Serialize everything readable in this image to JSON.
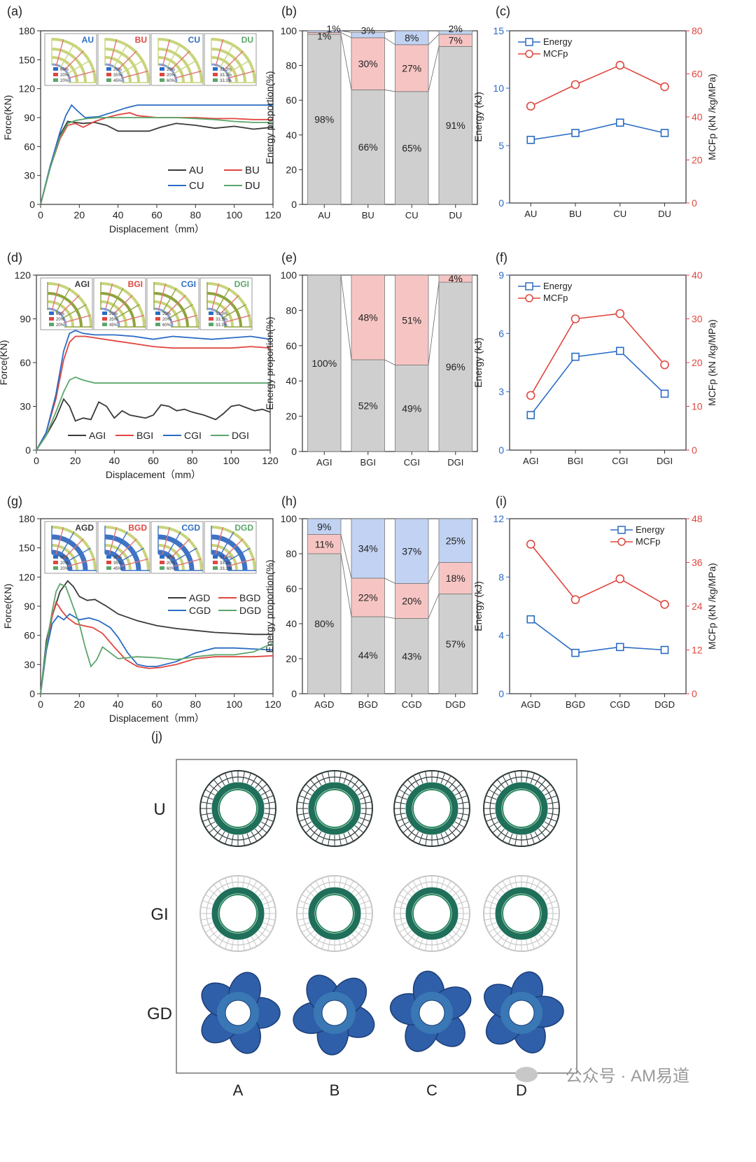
{
  "colors": {
    "gray": "#3a3a3a",
    "red": "#e0463f",
    "blue": "#2b6cc4",
    "green": "#5aa66a",
    "bar_gray": "#cfcfcf",
    "bar_pink": "#f6c5c3",
    "bar_blue": "#c1d2f2",
    "energy": "#2b6cc4",
    "mcfp": "#e0463f",
    "inset_u": "#c9d47c",
    "inset_gi": "#8fa43d",
    "inset_gd": "#3f73c4"
  },
  "chart_data": [
    {
      "panel": "(a)",
      "type": "line",
      "xlabel": "Displacement（mm）",
      "ylabel": "Force(KN)",
      "xlim": [
        0,
        120
      ],
      "ylim": [
        0,
        180
      ],
      "xticks": [
        0,
        20,
        40,
        60,
        80,
        100,
        120
      ],
      "yticks": [
        0,
        30,
        60,
        90,
        120,
        150,
        180
      ],
      "legend": "bottom-right",
      "series": [
        {
          "name": "AU",
          "color": "gray",
          "x": [
            0,
            5,
            10,
            14,
            18,
            22,
            28,
            34,
            40,
            48,
            56,
            62,
            70,
            80,
            90,
            100,
            110,
            120
          ],
          "y": [
            0,
            40,
            72,
            86,
            85,
            84,
            85,
            82,
            76,
            76,
            76,
            80,
            84,
            82,
            79,
            81,
            78,
            80
          ]
        },
        {
          "name": "BU",
          "color": "red",
          "x": [
            0,
            5,
            10,
            14,
            18,
            22,
            28,
            34,
            40,
            46,
            50,
            60,
            70,
            80,
            90,
            100,
            110,
            120
          ],
          "y": [
            0,
            38,
            68,
            82,
            84,
            80,
            86,
            90,
            93,
            95,
            92,
            90,
            90,
            90,
            89,
            89,
            88,
            88
          ]
        },
        {
          "name": "CU",
          "color": "blue",
          "x": [
            0,
            5,
            10,
            13,
            16,
            19,
            23,
            30,
            38,
            44,
            50,
            60,
            70,
            80,
            90,
            100,
            110,
            120
          ],
          "y": [
            0,
            40,
            75,
            92,
            103,
            97,
            90,
            91,
            96,
            100,
            103,
            103,
            103,
            103,
            103,
            103,
            103,
            103
          ]
        },
        {
          "name": "DU",
          "color": "green",
          "x": [
            0,
            5,
            10,
            14,
            18,
            24,
            30,
            40,
            50,
            60,
            70,
            80,
            90,
            100,
            110,
            120
          ],
          "y": [
            0,
            38,
            70,
            84,
            87,
            89,
            90,
            90,
            90,
            90,
            90,
            89,
            88,
            86,
            85,
            85
          ]
        }
      ],
      "insets": [
        {
          "label": "AU",
          "color": "blue",
          "lines": [
            "60%",
            "20%",
            "20%"
          ],
          "band": "u"
        },
        {
          "label": "BU",
          "color": "red",
          "lines": [
            "20%",
            "35%",
            "45%"
          ],
          "band": "u"
        },
        {
          "label": "CU",
          "color": "blue",
          "lines": [
            "20%",
            "20%",
            "60%"
          ],
          "band": "u"
        },
        {
          "label": "DU",
          "color": "green",
          "lines": [
            "33.3%",
            "33.3%",
            "33.3%"
          ],
          "band": "u"
        }
      ]
    },
    {
      "panel": "(b)",
      "type": "bar",
      "ylabel": "Energy proportion(%)",
      "ylim": [
        0,
        100
      ],
      "yticks": [
        0,
        20,
        40,
        60,
        80,
        100
      ],
      "categories": [
        "AU",
        "BU",
        "CU",
        "DU"
      ],
      "stacks": [
        {
          "color": "bar_gray",
          "values": [
            98,
            66,
            65,
            91
          ],
          "labels": [
            "98%",
            "66%",
            "65%",
            "91%"
          ]
        },
        {
          "color": "bar_pink",
          "values": [
            1,
            30,
            27,
            7
          ],
          "labels": [
            "1%",
            "30%",
            "27%",
            "7%"
          ]
        },
        {
          "color": "bar_blue",
          "values": [
            1,
            3,
            8,
            2
          ],
          "labels": [
            "1%",
            "3%",
            "8%",
            "2%"
          ]
        }
      ]
    },
    {
      "panel": "(c)",
      "type": "line",
      "categories": [
        "AU",
        "BU",
        "CU",
        "DU"
      ],
      "ylabel": "Energy (kJ)",
      "y2label": "MCFp (kN /kg/MPa)",
      "ylim": [
        0,
        15
      ],
      "yticks": [
        0,
        5,
        10,
        15
      ],
      "y2lim": [
        0,
        80
      ],
      "y2ticks": [
        0,
        20,
        40,
        60,
        80
      ],
      "legend": "top-left",
      "series": [
        {
          "name": "Energy",
          "axis": "left",
          "marker": "square",
          "values": [
            5.5,
            6.1,
            7.0,
            6.1
          ]
        },
        {
          "name": "MCFp",
          "axis": "right",
          "marker": "circle",
          "values": [
            45,
            55,
            64,
            54
          ]
        }
      ]
    },
    {
      "panel": "(d)",
      "type": "line",
      "xlabel": "Displacement（mm）",
      "ylabel": "Force(KN)",
      "xlim": [
        0,
        120
      ],
      "ylim": [
        0,
        120
      ],
      "xticks": [
        0,
        20,
        40,
        60,
        80,
        100,
        120
      ],
      "yticks": [
        0,
        30,
        60,
        90,
        120
      ],
      "legend": "bottom",
      "series": [
        {
          "name": "AGI",
          "color": "gray",
          "x": [
            0,
            5,
            10,
            14,
            17,
            20,
            24,
            28,
            32,
            36,
            40,
            44,
            48,
            52,
            56,
            60,
            64,
            68,
            72,
            76,
            80,
            86,
            92,
            96,
            100,
            104,
            108,
            112,
            116,
            120
          ],
          "y": [
            0,
            10,
            22,
            35,
            30,
            20,
            22,
            21,
            33,
            30,
            22,
            27,
            24,
            23,
            22,
            24,
            31,
            30,
            27,
            28,
            26,
            24,
            21,
            25,
            30,
            31,
            29,
            27,
            28,
            26
          ]
        },
        {
          "name": "BGI",
          "color": "red",
          "x": [
            0,
            5,
            10,
            14,
            17,
            20,
            25,
            30,
            40,
            50,
            60,
            70,
            80,
            90,
            100,
            110,
            120
          ],
          "y": [
            0,
            12,
            35,
            62,
            74,
            78,
            78,
            77,
            75,
            73,
            71,
            70,
            70,
            70,
            70,
            71,
            70
          ]
        },
        {
          "name": "CGI",
          "color": "blue",
          "x": [
            0,
            5,
            10,
            14,
            17,
            20,
            24,
            30,
            40,
            50,
            60,
            70,
            80,
            90,
            100,
            110,
            120
          ],
          "y": [
            0,
            12,
            38,
            68,
            80,
            82,
            80,
            79,
            79,
            78,
            76,
            78,
            77,
            76,
            77,
            78,
            76
          ]
        },
        {
          "name": "DGI",
          "color": "green",
          "x": [
            0,
            5,
            10,
            14,
            17,
            20,
            24,
            30,
            40,
            60,
            80,
            100,
            120
          ],
          "y": [
            0,
            10,
            26,
            40,
            48,
            50,
            48,
            46,
            46,
            46,
            46,
            46,
            46
          ]
        }
      ],
      "insets": [
        {
          "label": "AGI",
          "color": "gray",
          "lines": [
            "60%",
            "20%",
            "20%"
          ],
          "band": "gi"
        },
        {
          "label": "BGI",
          "color": "red",
          "lines": [
            "20%",
            "35%",
            "45%"
          ],
          "band": "gi"
        },
        {
          "label": "CGI",
          "color": "blue",
          "lines": [
            "20%",
            "20%",
            "60%"
          ],
          "band": "gi"
        },
        {
          "label": "DGI",
          "color": "green",
          "lines": [
            "33.3%",
            "33.3%",
            "33.3%"
          ],
          "band": "gi"
        }
      ]
    },
    {
      "panel": "(e)",
      "type": "bar",
      "ylabel": "Energy proportion(%)",
      "ylim": [
        0,
        100
      ],
      "yticks": [
        0,
        20,
        40,
        60,
        80,
        100
      ],
      "categories": [
        "AGI",
        "BGI",
        "CGI",
        "DGI"
      ],
      "stacks": [
        {
          "color": "bar_gray",
          "values": [
            100,
            52,
            49,
            96
          ],
          "labels": [
            "100%",
            "52%",
            "49%",
            "96%"
          ]
        },
        {
          "color": "bar_pink",
          "values": [
            0,
            48,
            51,
            4
          ],
          "labels": [
            "",
            "48%",
            "51%",
            "4%"
          ]
        }
      ]
    },
    {
      "panel": "(f)",
      "type": "line",
      "categories": [
        "AGI",
        "BGI",
        "CGI",
        "DGI"
      ],
      "ylabel": "Energy (kJ)",
      "y2label": "MCFp (kN /kg/MPa)",
      "ylim": [
        0,
        9
      ],
      "yticks": [
        0,
        3,
        6,
        9
      ],
      "y2lim": [
        0,
        40
      ],
      "y2ticks": [
        0,
        10,
        20,
        30,
        40
      ],
      "legend": "top-left",
      "series": [
        {
          "name": "Energy",
          "axis": "left",
          "marker": "square",
          "values": [
            1.8,
            4.8,
            5.1,
            2.9
          ]
        },
        {
          "name": "MCFp",
          "axis": "right",
          "marker": "circle",
          "values": [
            12.5,
            30,
            31.2,
            19.5
          ]
        }
      ]
    },
    {
      "panel": "(g)",
      "type": "line",
      "xlabel": "Displacement（mm）",
      "ylabel": "Force(KN)",
      "xlim": [
        0,
        120
      ],
      "ylim": [
        0,
        180
      ],
      "xticks": [
        0,
        20,
        40,
        60,
        80,
        100,
        120
      ],
      "yticks": [
        0,
        30,
        60,
        90,
        120,
        150,
        180
      ],
      "legend": "middle-right",
      "series": [
        {
          "name": "AGD",
          "color": "gray",
          "x": [
            0,
            3,
            6,
            10,
            14,
            17,
            20,
            24,
            28,
            34,
            40,
            50,
            60,
            70,
            80,
            90,
            100,
            110,
            120
          ],
          "y": [
            0,
            55,
            80,
            105,
            116,
            110,
            100,
            96,
            97,
            90,
            82,
            75,
            70,
            67,
            65,
            63,
            62,
            61,
            61
          ]
        },
        {
          "name": "BGD",
          "color": "red",
          "x": [
            0,
            3,
            6,
            8,
            11,
            14,
            18,
            22,
            27,
            32,
            38,
            44,
            50,
            56,
            62,
            70,
            80,
            90,
            100,
            110,
            120
          ],
          "y": [
            0,
            45,
            80,
            94,
            85,
            78,
            72,
            70,
            68,
            62,
            48,
            35,
            28,
            26,
            27,
            30,
            36,
            38,
            38,
            38,
            39
          ]
        },
        {
          "name": "CGD",
          "color": "blue",
          "x": [
            0,
            3,
            6,
            9,
            12,
            15,
            20,
            25,
            30,
            36,
            40,
            45,
            50,
            55,
            60,
            70,
            80,
            90,
            100,
            110,
            120
          ],
          "y": [
            0,
            45,
            72,
            80,
            76,
            82,
            76,
            78,
            75,
            68,
            58,
            42,
            30,
            28,
            28,
            33,
            42,
            47,
            47,
            46,
            45
          ]
        },
        {
          "name": "DGD",
          "color": "green",
          "x": [
            0,
            3,
            6,
            8,
            10,
            13,
            16,
            20,
            23,
            26,
            29,
            32,
            36,
            40,
            50,
            60,
            70,
            80,
            90,
            100,
            110,
            120
          ],
          "y": [
            0,
            50,
            85,
            105,
            113,
            110,
            94,
            72,
            48,
            28,
            35,
            48,
            42,
            36,
            38,
            37,
            35,
            38,
            40,
            40,
            43,
            52
          ]
        }
      ],
      "insets": [
        {
          "label": "AGD",
          "color": "gray",
          "lines": [
            "60%",
            "20%",
            "20%"
          ],
          "band": "gd"
        },
        {
          "label": "BGD",
          "color": "red",
          "lines": [
            "20%",
            "35%",
            "45%"
          ],
          "band": "gd"
        },
        {
          "label": "CGD",
          "color": "blue",
          "lines": [
            "20%",
            "20%",
            "60%"
          ],
          "band": "gd"
        },
        {
          "label": "DGD",
          "color": "green",
          "lines": [
            "33.3%",
            "33.3%",
            "33.3%"
          ],
          "band": "gd"
        }
      ]
    },
    {
      "panel": "(h)",
      "type": "bar",
      "ylabel": "Energy proportion(%)",
      "ylim": [
        0,
        100
      ],
      "yticks": [
        0,
        20,
        40,
        60,
        80,
        100
      ],
      "categories": [
        "AGD",
        "BGD",
        "CGD",
        "DGD"
      ],
      "stacks": [
        {
          "color": "bar_gray",
          "values": [
            80,
            44,
            43,
            57
          ],
          "labels": [
            "80%",
            "44%",
            "43%",
            "57%"
          ]
        },
        {
          "color": "bar_pink",
          "values": [
            11,
            22,
            20,
            18
          ],
          "labels": [
            "11%",
            "22%",
            "20%",
            "18%"
          ]
        },
        {
          "color": "bar_blue",
          "values": [
            9,
            34,
            37,
            25
          ],
          "labels": [
            "9%",
            "34%",
            "37%",
            "25%"
          ]
        }
      ]
    },
    {
      "panel": "(i)",
      "type": "line",
      "categories": [
        "AGD",
        "BGD",
        "CGD",
        "DGD"
      ],
      "ylabel": "Energy (kJ)",
      "y2label": "MCFp (kN /kg/MPa)",
      "ylim": [
        0,
        12
      ],
      "yticks": [
        0,
        4,
        8,
        12
      ],
      "y2lim": [
        0,
        48
      ],
      "y2ticks": [
        0,
        12,
        24,
        36,
        48
      ],
      "legend": "top-right",
      "series": [
        {
          "name": "Energy",
          "axis": "left",
          "marker": "square",
          "values": [
            5.1,
            2.8,
            3.2,
            3.0
          ]
        },
        {
          "name": "MCFp",
          "axis": "right",
          "marker": "circle",
          "values": [
            41,
            25.8,
            31.5,
            24.5
          ]
        }
      ]
    },
    {
      "panel": "(j)",
      "type": "table",
      "rows": [
        "U",
        "GI",
        "GD"
      ],
      "columns": [
        "A",
        "B",
        "C",
        "D"
      ]
    }
  ],
  "watermark": "公众号 · AM易道"
}
